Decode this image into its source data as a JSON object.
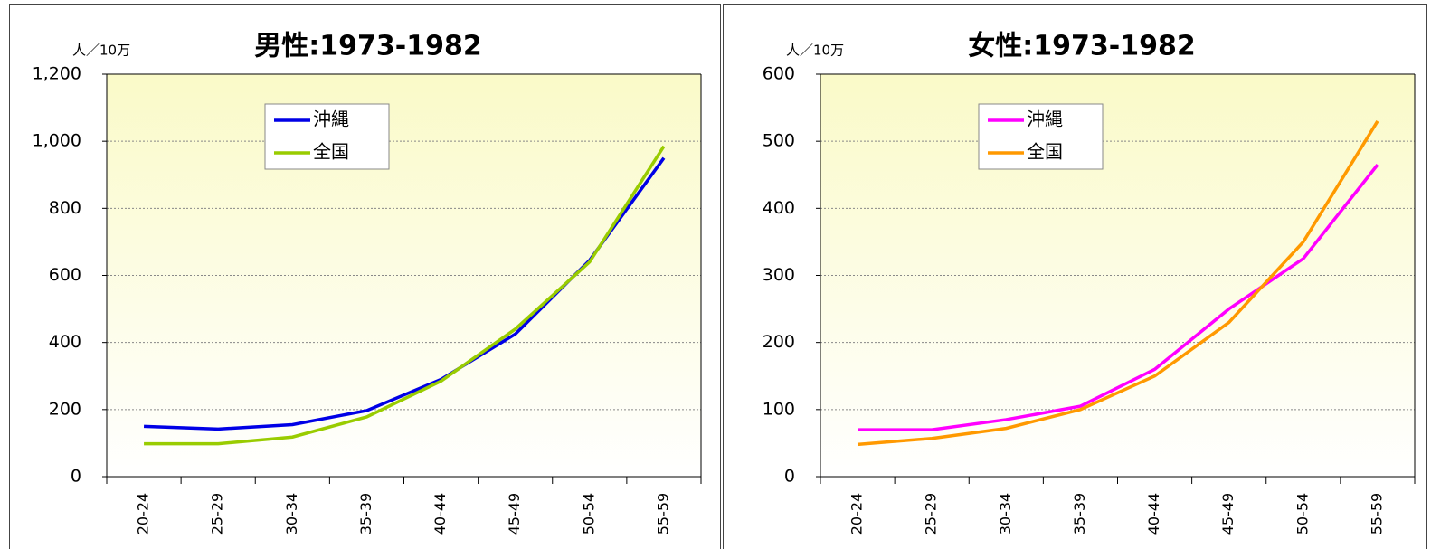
{
  "chart_data": [
    {
      "type": "line",
      "title": "男性:1973-1982",
      "y_label": "人／10万",
      "categories": [
        "20-24",
        "25-29",
        "30-34",
        "35-39",
        "40-44",
        "45-49",
        "50-54",
        "55-59"
      ],
      "series": [
        {
          "name": "沖縄",
          "color": "#0000e6",
          "values": [
            150,
            142,
            155,
            197,
            290,
            425,
            645,
            950
          ]
        },
        {
          "name": "全国",
          "color": "#99cc00",
          "values": [
            98,
            98,
            118,
            178,
            285,
            440,
            640,
            985
          ]
        }
      ],
      "ylim": [
        0,
        1200
      ],
      "yticks": [
        0,
        200,
        400,
        600,
        800,
        {
          "value": 1000,
          "label": "1,000"
        },
        {
          "value": 1200,
          "label": "1,200"
        }
      ],
      "grid": true,
      "legend": "upper left"
    },
    {
      "type": "line",
      "title": "女性:1973-1982",
      "y_label": "人／10万",
      "categories": [
        "20-24",
        "25-29",
        "30-34",
        "35-39",
        "40-44",
        "45-49",
        "50-54",
        "55-59"
      ],
      "series": [
        {
          "name": "沖縄",
          "color": "#ff00ff",
          "values": [
            70,
            70,
            85,
            105,
            160,
            250,
            325,
            465
          ]
        },
        {
          "name": "全国",
          "color": "#ff9900",
          "values": [
            48,
            57,
            72,
            100,
            150,
            230,
            350,
            530
          ]
        }
      ],
      "ylim": [
        0,
        600
      ],
      "yticks": [
        0,
        100,
        200,
        300,
        400,
        500,
        600
      ],
      "grid": true,
      "legend": "upper left"
    }
  ]
}
